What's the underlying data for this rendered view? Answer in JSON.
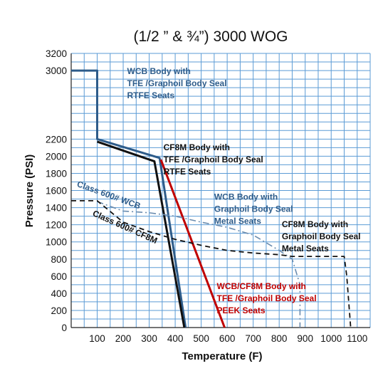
{
  "chart_data": {
    "type": "line",
    "title": "(1/2 ” & ¾”) 3000 WOG",
    "xlabel": "Temperature (F)",
    "ylabel": "Pressure (PSI)",
    "xlim": [
      0,
      1150
    ],
    "ylim": [
      0,
      3200
    ],
    "x_ticks": [
      100,
      200,
      300,
      400,
      500,
      600,
      700,
      800,
      900,
      1000,
      1100
    ],
    "y_ticks": [
      0,
      200,
      400,
      600,
      800,
      1000,
      1200,
      1400,
      1600,
      1800,
      2000,
      2200,
      3000,
      3200
    ],
    "x_grid_step": 50,
    "y_grid_step": 100,
    "grid": true,
    "colors": {
      "grid": "#5b9bd5",
      "wcb_blue": "#2e5c8a",
      "black": "#111111",
      "red": "#c00000",
      "gray_blue": "#6a8caf"
    },
    "series": [
      {
        "id": "wcb-tfe-rtfe",
        "style": "solid",
        "color": "#2e5c8a",
        "points": [
          [
            0,
            3000
          ],
          [
            100,
            3000
          ],
          [
            100,
            2200
          ],
          [
            340,
            1980
          ],
          [
            440,
            0
          ]
        ]
      },
      {
        "id": "cf8m-tfe-rtfe",
        "style": "solid",
        "color": "#111111",
        "points": [
          [
            100,
            2170
          ],
          [
            320,
            1940
          ],
          [
            435,
            0
          ]
        ]
      },
      {
        "id": "wcb-cf8m-tfe-peek",
        "style": "solid",
        "color": "#c00000",
        "points": [
          [
            345,
            1960
          ],
          [
            590,
            0
          ]
        ]
      },
      {
        "id": "class-600-wcb",
        "style": "dashdot",
        "color": "#6a8caf",
        "points": [
          [
            100,
            1470
          ],
          [
            200,
            1360
          ],
          [
            300,
            1340
          ],
          [
            400,
            1300
          ],
          [
            500,
            1230
          ],
          [
            600,
            1170
          ],
          [
            700,
            1080
          ],
          [
            800,
            900
          ],
          [
            850,
            800
          ],
          [
            880,
            500
          ],
          [
            880,
            0
          ]
        ]
      },
      {
        "id": "class-600-cf8m",
        "style": "dashed",
        "color": "#111111",
        "points": [
          [
            0,
            1480
          ],
          [
            100,
            1480
          ],
          [
            200,
            1230
          ],
          [
            300,
            1120
          ],
          [
            400,
            1030
          ],
          [
            500,
            960
          ],
          [
            600,
            900
          ],
          [
            700,
            870
          ],
          [
            800,
            850
          ],
          [
            850,
            830
          ],
          [
            1050,
            830
          ],
          [
            1060,
            600
          ],
          [
            1075,
            0
          ]
        ]
      }
    ],
    "annotations": [
      {
        "lines": [
          "WCB Body  with",
          "TFE /Graphoil Body Seal",
          "RTFE Seats"
        ],
        "color": "#2e5c8a",
        "x": 215,
        "y": 2960
      },
      {
        "lines": [
          "CF8M Body  with",
          "TFE /Graphoil Body Seal",
          "RTFE Seats"
        ],
        "color": "#111111",
        "x": 355,
        "y": 2070
      },
      {
        "lines": [
          "WCB Body  with",
          "Graphoil Body Seal",
          "Metal Seats"
        ],
        "color": "#2e5c8a",
        "x": 550,
        "y": 1490
      },
      {
        "lines": [
          "CF8M  Body with",
          "Graphoil Body Seal",
          "Metal Seats"
        ],
        "color": "#111111",
        "x": 810,
        "y": 1170
      },
      {
        "lines": [
          "WCB/CF8M Body  with",
          "TFE /Graphoil Body Seal",
          "PEEK Seats"
        ],
        "color": "#c00000",
        "x": 560,
        "y": 450
      }
    ],
    "rotated_labels": [
      {
        "text": "Class 600# WCB",
        "color": "#2e5c8a",
        "x": 20,
        "y": 1650,
        "angle": 20
      },
      {
        "text": "Class 600# CF8M",
        "color": "#111111",
        "x": 80,
        "y": 1310,
        "angle": 24
      }
    ]
  }
}
